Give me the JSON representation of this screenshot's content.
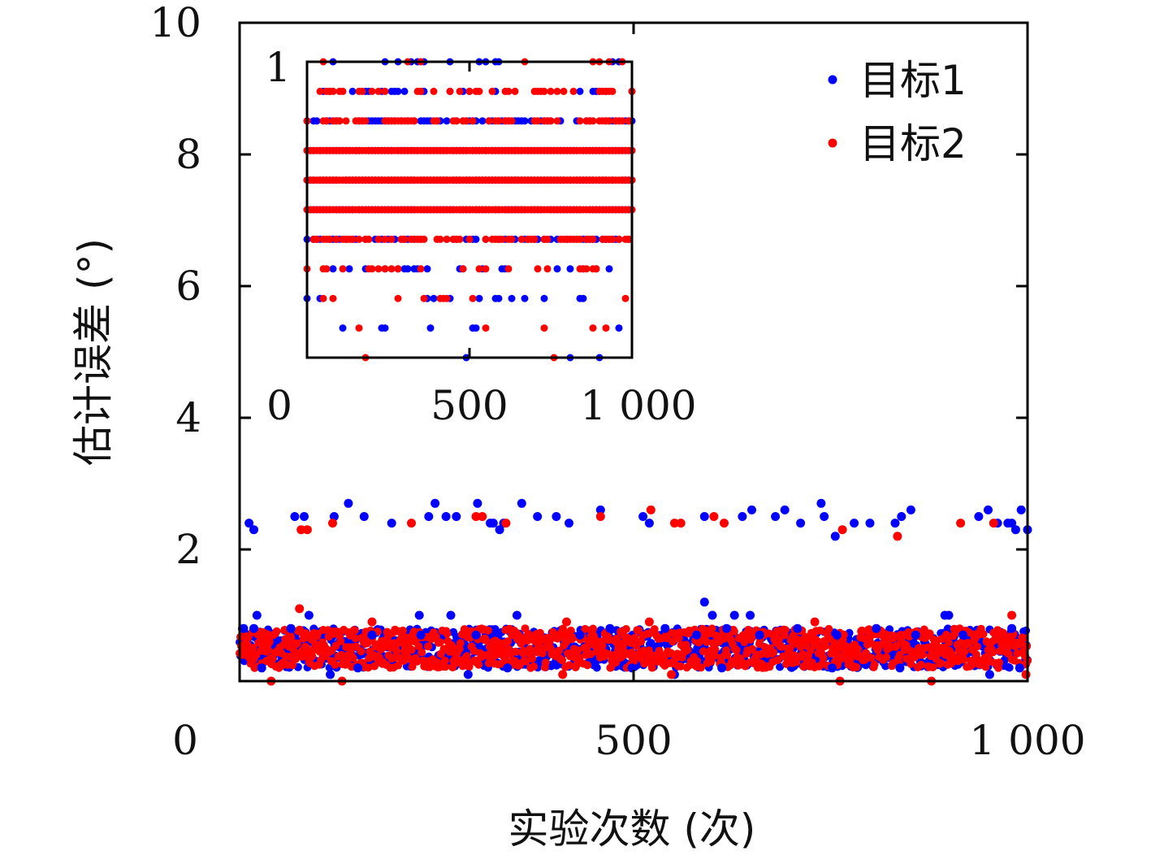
{
  "chart_data": [
    {
      "type": "scatter",
      "title": "",
      "xlabel": "实验次数 (次)",
      "ylabel": "估计误差 (°)",
      "xlim": [
        0,
        1000
      ],
      "ylim": [
        0,
        10
      ],
      "x_ticks": [
        "0",
        "500",
        "1 000"
      ],
      "y_ticks": [
        "0",
        "2",
        "4",
        "6",
        "8",
        "10"
      ],
      "grid": false,
      "legend_position": "top-right",
      "series": [
        {
          "name": "目标1",
          "color": "#0000ff",
          "points": [
            [
              12,
              2.4
            ],
            [
              18,
              2.3
            ],
            [
              70,
              2.5
            ],
            [
              82,
              2.5
            ],
            [
              120,
              2.5
            ],
            [
              138,
              2.7
            ],
            [
              158,
              2.5
            ],
            [
              193,
              2.4
            ],
            [
              240,
              2.5
            ],
            [
              248,
              2.7
            ],
            [
              262,
              2.5
            ],
            [
              275,
              2.5
            ],
            [
              302,
              2.7
            ],
            [
              318,
              2.4
            ],
            [
              322,
              2.4
            ],
            [
              330,
              2.3
            ],
            [
              335,
              2.4
            ],
            [
              358,
              2.7
            ],
            [
              378,
              2.5
            ],
            [
              402,
              2.5
            ],
            [
              418,
              2.4
            ],
            [
              458,
              2.6
            ],
            [
              512,
              2.5
            ],
            [
              520,
              2.4
            ],
            [
              590,
              2.5
            ],
            [
              638,
              2.5
            ],
            [
              650,
              2.6
            ],
            [
              680,
              2.5
            ],
            [
              692,
              2.6
            ],
            [
              712,
              2.4
            ],
            [
              738,
              2.7
            ],
            [
              742,
              2.5
            ],
            [
              756,
              2.2
            ],
            [
              780,
              2.4
            ],
            [
              800,
              2.4
            ],
            [
              832,
              2.4
            ],
            [
              840,
              2.5
            ],
            [
              852,
              2.6
            ],
            [
              938,
              2.5
            ],
            [
              950,
              2.6
            ],
            [
              962,
              2.4
            ],
            [
              975,
              2.4
            ],
            [
              980,
              2.4
            ],
            [
              985,
              2.3
            ],
            [
              992,
              2.6
            ],
            [
              1000,
              2.3
            ],
            [
              22,
              1.0
            ],
            [
              88,
              1.0
            ],
            [
              228,
              1.0
            ],
            [
              268,
              1.0
            ],
            [
              352,
              1.0
            ],
            [
              590,
              1.2
            ],
            [
              600,
              1.0
            ],
            [
              628,
              1.0
            ],
            [
              648,
              1.0
            ],
            [
              895,
              1.0
            ],
            [
              900,
              1.0
            ],
            [
              5,
              0.8
            ],
            [
              18,
              0.8
            ],
            [
              65,
              0.8
            ],
            [
              168,
              0.7
            ],
            [
              230,
              0.7
            ],
            [
              300,
              0.7
            ],
            [
              432,
              0.7
            ],
            [
              470,
              0.8
            ],
            [
              540,
              0.8
            ],
            [
              580,
              0.7
            ],
            [
              618,
              0.8
            ],
            [
              660,
              0.7
            ],
            [
              708,
              0.8
            ],
            [
              758,
              0.7
            ],
            [
              808,
              0.8
            ],
            [
              858,
              0.7
            ],
            [
              918,
              0.7
            ],
            [
              980,
              0.8
            ],
            [
              28,
              0.2
            ],
            [
              115,
              0.1
            ],
            [
              150,
              0.2
            ],
            [
              290,
              0.1
            ],
            [
              340,
              0.2
            ],
            [
              498,
              0.2
            ],
            [
              552,
              0.1
            ],
            [
              612,
              0.2
            ],
            [
              752,
              0.2
            ],
            [
              838,
              0.2
            ],
            [
              952,
              0.1
            ],
            [
              990,
              0.2
            ]
          ]
        },
        {
          "name": "目标2",
          "color": "#ff0000",
          "points": [
            [
              78,
              2.3
            ],
            [
              86,
              2.3
            ],
            [
              118,
              2.4
            ],
            [
              218,
              2.4
            ],
            [
              300,
              2.5
            ],
            [
              308,
              2.5
            ],
            [
              338,
              2.4
            ],
            [
              458,
              2.5
            ],
            [
              522,
              2.6
            ],
            [
              552,
              2.4
            ],
            [
              560,
              2.4
            ],
            [
              602,
              2.5
            ],
            [
              615,
              2.4
            ],
            [
              765,
              2.3
            ],
            [
              835,
              2.2
            ],
            [
              915,
              2.4
            ],
            [
              957,
              2.4
            ],
            [
              76,
              1.1
            ],
            [
              168,
              0.9
            ],
            [
              415,
              0.9
            ],
            [
              520,
              0.9
            ],
            [
              730,
              0.9
            ],
            [
              980,
              1.0
            ],
            [
              40,
              0.0
            ],
            [
              130,
              0.0
            ],
            [
              410,
              0.1
            ],
            [
              548,
              0.1
            ],
            [
              762,
              0.0
            ],
            [
              878,
              0.0
            ],
            [
              998,
              0.1
            ]
          ]
        }
      ],
      "dense_band": {
        "x_range": [
          0,
          1000
        ],
        "y_range": [
          0.2,
          0.8
        ],
        "points_per_series": 1000
      },
      "inset": {
        "xlim": [
          0,
          1000
        ],
        "ylim": [
          0,
          1
        ],
        "x_ticks": [
          "0",
          "500",
          "1 000"
        ],
        "y_ticks": [
          "1"
        ],
        "levels": [
          0.0,
          0.1,
          0.2,
          0.3,
          0.4,
          0.5,
          0.6,
          0.7,
          0.8,
          0.9,
          1.0
        ],
        "series": [
          {
            "name": "目标1",
            "color": "#0000ff"
          },
          {
            "name": "目标2",
            "color": "#ff0000"
          }
        ]
      }
    }
  ]
}
